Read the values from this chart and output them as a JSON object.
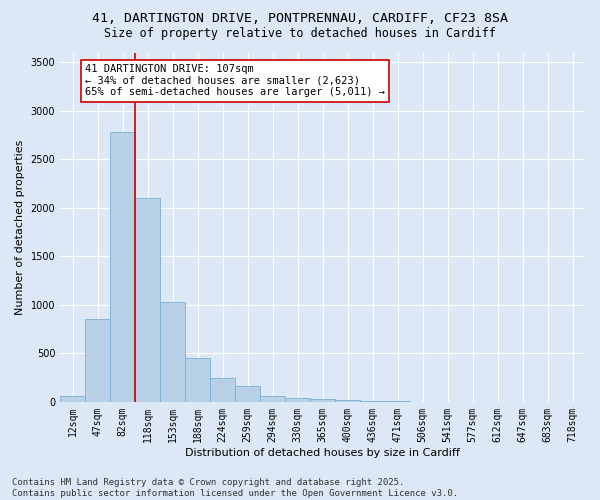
{
  "title_line1": "41, DARTINGTON DRIVE, PONTPRENNAU, CARDIFF, CF23 8SA",
  "title_line2": "Size of property relative to detached houses in Cardiff",
  "xlabel": "Distribution of detached houses by size in Cardiff",
  "ylabel": "Number of detached properties",
  "categories": [
    "12sqm",
    "47sqm",
    "82sqm",
    "118sqm",
    "153sqm",
    "188sqm",
    "224sqm",
    "259sqm",
    "294sqm",
    "330sqm",
    "365sqm",
    "400sqm",
    "436sqm",
    "471sqm",
    "506sqm",
    "541sqm",
    "577sqm",
    "612sqm",
    "647sqm",
    "683sqm",
    "718sqm"
  ],
  "values": [
    55,
    850,
    2780,
    2100,
    1030,
    455,
    245,
    160,
    60,
    40,
    25,
    15,
    8,
    5,
    3,
    2,
    1,
    1,
    0,
    0,
    0
  ],
  "bar_color": "#b8d0e8",
  "bar_edge_color": "#7aafd4",
  "vline_color": "#cc0000",
  "annotation_text": "41 DARTINGTON DRIVE: 107sqm\n← 34% of detached houses are smaller (2,623)\n65% of semi-detached houses are larger (5,011) →",
  "annotation_box_facecolor": "#ffffff",
  "annotation_box_edgecolor": "#cc0000",
  "ylim": [
    0,
    3600
  ],
  "yticks": [
    0,
    500,
    1000,
    1500,
    2000,
    2500,
    3000,
    3500
  ],
  "background_color": "#dce8f5",
  "plot_background_color": "#dce8f5",
  "grid_color": "#ffffff",
  "footer_line1": "Contains HM Land Registry data © Crown copyright and database right 2025.",
  "footer_line2": "Contains public sector information licensed under the Open Government Licence v3.0.",
  "title_fontsize": 9.5,
  "subtitle_fontsize": 8.5,
  "axis_label_fontsize": 8,
  "tick_fontsize": 7,
  "annotation_fontsize": 7.5,
  "footer_fontsize": 6.5,
  "ylabel_text": "Number of detached properties"
}
